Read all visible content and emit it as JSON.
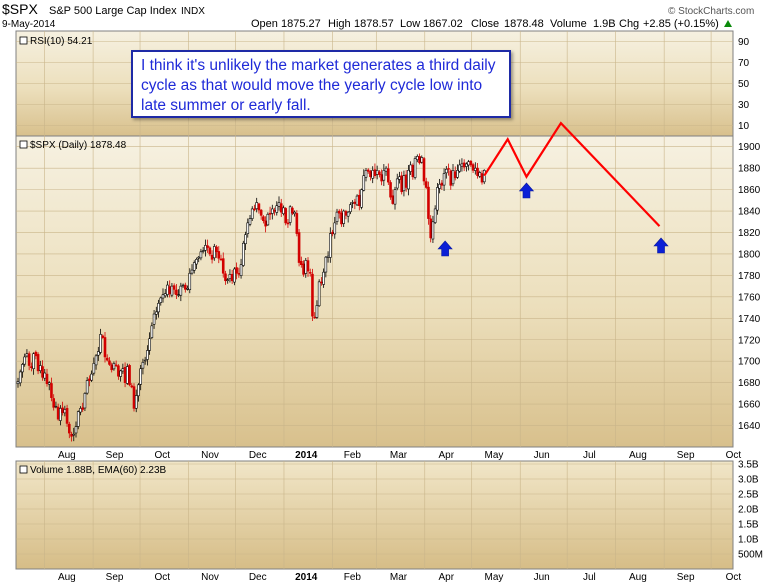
{
  "header": {
    "symbol": "$SPX",
    "name": "S&P 500 Large Cap Index",
    "exchange": "INDX",
    "date": "9-May-2014",
    "open_label": "Open",
    "open": "1875.27",
    "high_label": "High",
    "high": "1878.57",
    "low_label": "Low",
    "low": "1867.02",
    "close_label": "Close",
    "close": "1878.48",
    "volume_label": "Volume",
    "volume": "1.9B",
    "chg_label": "Chg",
    "chg": "+2.85 (+0.15%)",
    "chg_color": "#0a8a0a",
    "watermark": "© StockCharts.com"
  },
  "annotation": {
    "text": "I think it's unlikely the market generates a third daily cycle as that would move the yearly cycle low into late summer or early fall.",
    "color": "#1f2ad8",
    "border_color": "#1e2aa6"
  },
  "chart_data": [
    {
      "type": "line",
      "panel": "rsi",
      "label": "RSI(10) 54.21",
      "y_ticks": [
        10,
        30,
        50,
        70,
        90
      ],
      "ylim": [
        0,
        100
      ]
    },
    {
      "type": "candlestick",
      "panel": "price",
      "label": "$SPX (Daily) 1878.48",
      "ylim": [
        1620,
        1910
      ],
      "y_ticks": [
        1640,
        1660,
        1680,
        1700,
        1720,
        1740,
        1760,
        1780,
        1800,
        1820,
        1840,
        1860,
        1880,
        1900
      ],
      "x_labels": [
        "Aug",
        "Sep",
        "Oct",
        "Nov",
        "Dec",
        "2014",
        "Feb",
        "Mar",
        "Apr",
        "May",
        "Jun",
        "Jul",
        "Aug",
        "Sep",
        "Oct"
      ],
      "close_series": [
        1681,
        1690,
        1697,
        1704,
        1707,
        1696,
        1694,
        1707,
        1705,
        1691,
        1696,
        1685,
        1689,
        1679,
        1680,
        1666,
        1657,
        1658,
        1646,
        1656,
        1652,
        1655,
        1642,
        1633,
        1630,
        1632,
        1639,
        1653,
        1656,
        1655,
        1670,
        1682,
        1682,
        1688,
        1698,
        1705,
        1709,
        1725,
        1722,
        1704,
        1701,
        1697,
        1692,
        1698,
        1696,
        1686,
        1691,
        1693,
        1680,
        1695,
        1678,
        1676,
        1656,
        1668,
        1678,
        1693,
        1699,
        1701,
        1710,
        1721,
        1733,
        1744,
        1746,
        1754,
        1759,
        1762,
        1763,
        1771,
        1763,
        1770,
        1767,
        1762,
        1762,
        1770,
        1771,
        1767,
        1768,
        1782,
        1785,
        1792,
        1795,
        1797,
        1802,
        1803,
        1808,
        1806,
        1800,
        1795,
        1807,
        1802,
        1796,
        1795,
        1782,
        1775,
        1776,
        1781,
        1775,
        1786,
        1782,
        1781,
        1790,
        1810,
        1818,
        1829,
        1833,
        1842,
        1842,
        1848,
        1841,
        1836,
        1831,
        1826,
        1837,
        1837,
        1842,
        1840,
        1845,
        1848,
        1839,
        1843,
        1829,
        1828,
        1844,
        1838,
        1839,
        1819,
        1792,
        1790,
        1781,
        1794,
        1784,
        1782,
        1742,
        1741,
        1752,
        1774,
        1773,
        1783,
        1797,
        1798,
        1819,
        1819,
        1829,
        1839,
        1838,
        1828,
        1840,
        1836,
        1839,
        1846,
        1848,
        1847,
        1854,
        1845,
        1860,
        1873,
        1878,
        1877,
        1872,
        1878,
        1873,
        1878,
        1874,
        1868,
        1878,
        1880,
        1867,
        1853,
        1847,
        1860,
        1870,
        1872,
        1858,
        1873,
        1862,
        1878,
        1883,
        1872,
        1889,
        1891,
        1885,
        1890,
        1868,
        1862,
        1833,
        1815,
        1830,
        1842,
        1862,
        1865,
        1864,
        1875,
        1879,
        1879,
        1864,
        1878,
        1871,
        1878,
        1883,
        1884,
        1881,
        1884,
        1886,
        1883,
        1878,
        1880,
        1873,
        1876,
        1867,
        1878
      ],
      "actual_end_close": 1878.48,
      "projection": {
        "color": "#ff0000",
        "points": [
          {
            "date": "2014-05-09",
            "value": 1873
          },
          {
            "date": "2014-05-24",
            "value": 1907
          },
          {
            "date": "2014-06-05",
            "value": 1872
          },
          {
            "date": "2014-06-27",
            "value": 1922
          },
          {
            "date": "2014-08-29",
            "value": 1826
          }
        ]
      },
      "cycle_low_arrows": {
        "color": "#0b1fd6",
        "dates": [
          "2014-04-14",
          "2014-06-05",
          "2014-08-30"
        ]
      }
    },
    {
      "type": "bar",
      "panel": "volume",
      "label": "Volume 1.88B, EMA(60) 2.23B",
      "y_ticks": [
        "500M",
        "1.0B",
        "1.5B",
        "2.0B",
        "2.5B",
        "3.0B",
        "3.5B"
      ],
      "ylim": [
        0,
        3.6
      ]
    }
  ]
}
